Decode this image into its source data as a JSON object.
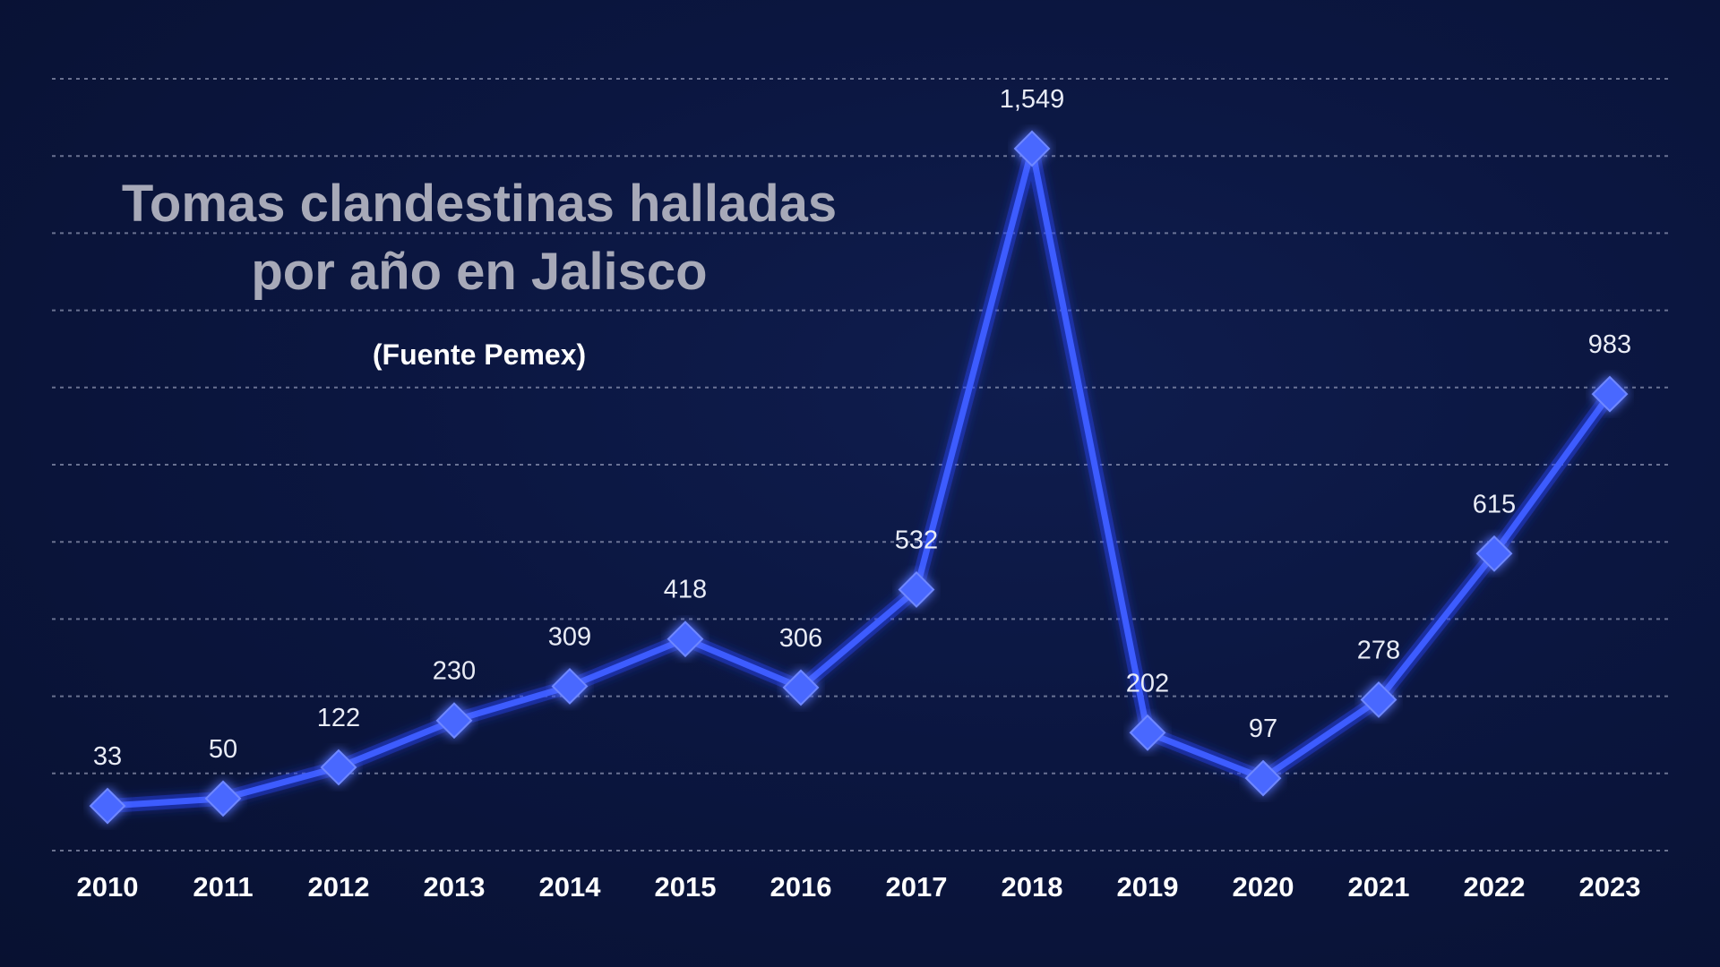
{
  "chart_data": {
    "type": "line",
    "title_lines": [
      "Tomas clandestinas halladas",
      "por año en Jalisco"
    ],
    "subtitle": "(Fuente Pemex)",
    "categories": [
      "2010",
      "2011",
      "2012",
      "2013",
      "2014",
      "2015",
      "2016",
      "2017",
      "2018",
      "2019",
      "2020",
      "2021",
      "2022",
      "2023"
    ],
    "series": [
      {
        "values": [
          33,
          50,
          122,
          230,
          309,
          418,
          306,
          532,
          1549,
          202,
          97,
          278,
          615,
          983
        ]
      }
    ],
    "data_labels": [
      "33",
      "50",
      "122",
      "230",
      "309",
      "418",
      "306",
      "532",
      "1,549",
      "202",
      "97",
      "278",
      "615",
      "983"
    ],
    "ylim": [
      -70,
      1710
    ],
    "y_gridlines": 10,
    "grid": true,
    "y_tick_labels_shown": false,
    "legend": "none",
    "colors": {
      "line": "#3d5cff",
      "glow": "#2a48ff",
      "marker": "#4a68ff",
      "background": "#0b1640",
      "title": "#a7a9b8",
      "subtitle": "#ffffff",
      "labels": "#e9ecf6"
    },
    "marker": "diamond"
  }
}
